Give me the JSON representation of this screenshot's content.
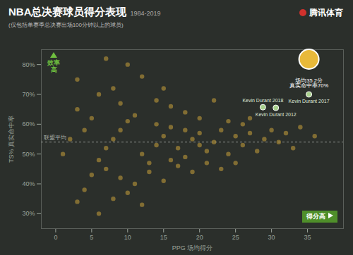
{
  "chart_data": {
    "type": "scatter",
    "title": "NBA总决赛球员得分表现",
    "title_years": "1984-2019",
    "subtitle": "(仅包括单赛季总决赛出场100分钟以上的球员)",
    "source": "腾讯体育",
    "x_label": "PPG 场均得分",
    "y_label": "TS% 真实命中率",
    "y_direction_label": "效率高",
    "x_direction_label": "得分高",
    "x": [
      3,
      4,
      5,
      6,
      7,
      8,
      9,
      10,
      11,
      12,
      13,
      14,
      15,
      16,
      17,
      18,
      19,
      20,
      21,
      22,
      23,
      24,
      25,
      26,
      27,
      29,
      31,
      33,
      3,
      6,
      8,
      10,
      12,
      14,
      16,
      18,
      20,
      22,
      4,
      5,
      7,
      9,
      11,
      13,
      15,
      17,
      19,
      21,
      23,
      26,
      28,
      30,
      32,
      6,
      8,
      10,
      12,
      14,
      16,
      18,
      20,
      24,
      25,
      27,
      2,
      1,
      3,
      7,
      9,
      15,
      34,
      36,
      28.8,
      30.6,
      35.2
    ],
    "values": [
      34,
      38,
      43,
      48,
      52,
      55,
      58,
      61,
      63,
      50,
      47,
      53,
      56,
      59,
      52,
      49,
      55,
      57,
      51,
      54,
      58,
      50,
      56,
      60,
      57,
      55,
      54,
      52,
      75,
      70,
      72,
      80,
      76,
      68,
      66,
      64,
      62,
      68,
      58,
      62,
      45,
      42,
      40,
      44,
      41,
      46,
      44,
      47,
      45,
      53,
      51,
      58,
      57,
      30,
      35,
      37,
      33,
      60,
      48,
      58,
      53,
      61,
      47,
      62,
      55,
      50,
      65,
      82,
      67,
      72,
      59,
      56,
      65.7,
      65.5,
      70
    ],
    "point_labels": [
      null,
      null,
      null,
      null,
      null,
      null,
      null,
      null,
      null,
      null,
      null,
      null,
      null,
      null,
      null,
      null,
      null,
      null,
      null,
      null,
      null,
      null,
      null,
      null,
      null,
      null,
      null,
      null,
      null,
      null,
      null,
      null,
      null,
      null,
      null,
      null,
      null,
      null,
      null,
      null,
      null,
      null,
      null,
      null,
      null,
      null,
      null,
      null,
      null,
      null,
      null,
      null,
      null,
      null,
      null,
      null,
      null,
      null,
      null,
      null,
      null,
      null,
      null,
      null,
      null,
      null,
      null,
      null,
      null,
      null,
      null,
      null,
      "Kevin Durant 2018",
      "Kevin Durant 2012",
      "Kevin Durant 2017"
    ],
    "color": "#c9a13b",
    "marker": "circle",
    "xlim": [
      -2,
      40
    ],
    "xticks": [
      0,
      5,
      10,
      15,
      20,
      25,
      30,
      35
    ],
    "ylim": [
      25,
      85
    ],
    "yticks": [
      {
        "value": 30,
        "label": "30%"
      },
      {
        "value": 40,
        "label": "40%"
      },
      {
        "value": 50,
        "label": "50%"
      },
      {
        "value": 60,
        "label": "60%"
      },
      {
        "value": 70,
        "label": "70%"
      },
      {
        "value": 80,
        "label": "80%"
      }
    ],
    "grid": false,
    "reference_line": {
      "value": 54,
      "label": "联盟平均"
    },
    "annotation": {
      "point": "Kevin Durant 2017",
      "text": [
        "场均35.2分",
        "真实命中率70%"
      ]
    }
  }
}
